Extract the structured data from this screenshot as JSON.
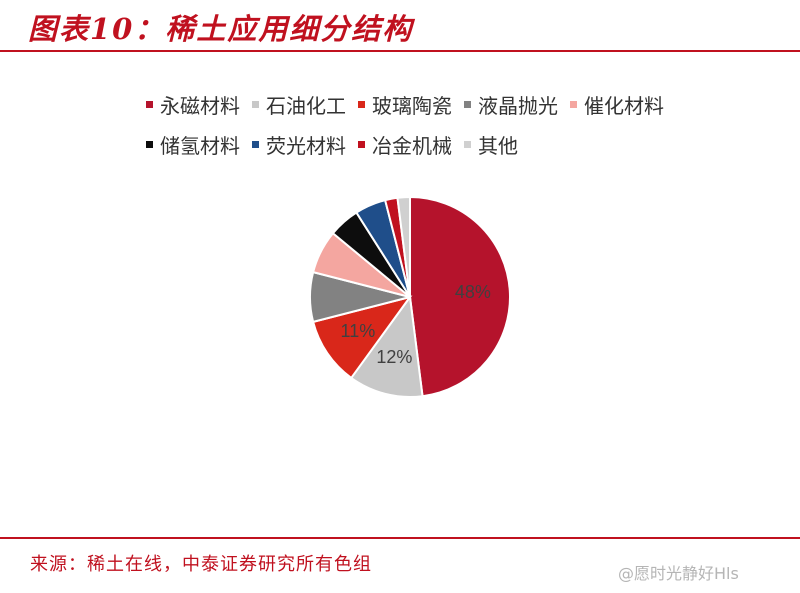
{
  "title": "图表10：稀土应用细分结构",
  "source": "来源：稀土在线，中泰证券研究所有色组",
  "watermark": "@愿时光静好Hls",
  "chart_data": {
    "type": "pie",
    "title": "",
    "legend_position": "top",
    "categories": [
      "永磁材料",
      "石油化工",
      "玻璃陶瓷",
      "液晶抛光",
      "催化材料",
      "储氢材料",
      "荧光材料",
      "冶金机械",
      "其他"
    ],
    "values": [
      48,
      12,
      11,
      8,
      7,
      5,
      5,
      2,
      2
    ],
    "data_labels": [
      "48%",
      "12%",
      "11%",
      "",
      "",
      "",
      "",
      "",
      ""
    ],
    "colors": [
      "#b5132c",
      "#c8c8c8",
      "#d9271a",
      "#828282",
      "#f4a6a0",
      "#0d0d0d",
      "#1f4e8a",
      "#c0111f",
      "#d0d0d0"
    ]
  }
}
